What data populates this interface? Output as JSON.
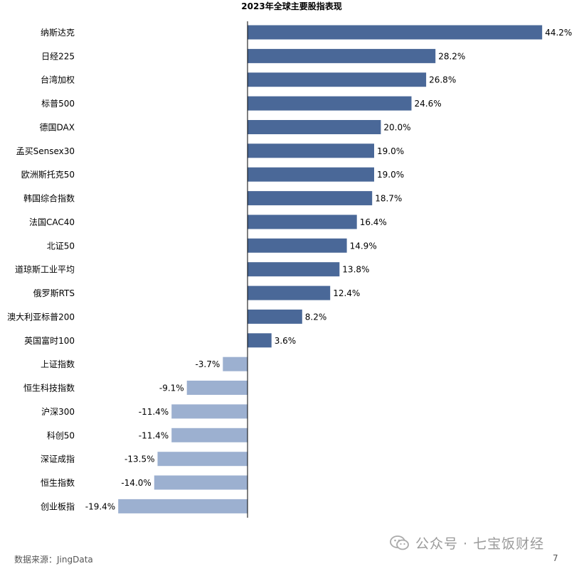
{
  "chart_data": {
    "type": "bar",
    "orientation": "horizontal",
    "title": "2023年全球主要股指表现",
    "xlabel": "",
    "ylabel": "",
    "unit": "%",
    "categories": [
      "纳斯达克",
      "日经225",
      "台湾加权",
      "标普500",
      "德国DAX",
      "孟买Sensex30",
      "欧洲斯托克50",
      "韩国综合指数",
      "法国CAC40",
      "北证50",
      "道琼斯工业平均",
      "俄罗斯RTS",
      "澳大利亚标普200",
      "英国富时100",
      "上证指数",
      "恒生科技指数",
      "沪深300",
      "科创50",
      "深证成指",
      "恒生指数",
      "创业板指"
    ],
    "values": [
      44.2,
      28.2,
      26.8,
      24.6,
      20.0,
      19.0,
      19.0,
      18.7,
      16.4,
      14.9,
      13.8,
      12.4,
      8.2,
      3.6,
      -3.7,
      -9.1,
      -11.4,
      -11.4,
      -13.5,
      -14.0,
      -19.4
    ],
    "data_labels": [
      "44.2%",
      "28.2%",
      "26.8%",
      "24.6%",
      "20.0%",
      "19.0%",
      "19.0%",
      "18.7%",
      "16.4%",
      "14.9%",
      "13.8%",
      "12.4%",
      "8.2%",
      "3.6%",
      "-3.7%",
      "-9.1%",
      "-11.4%",
      "-11.4%",
      "-13.5%",
      "-14.0%",
      "-19.4%"
    ],
    "xlim": [
      -19.4,
      44.2
    ],
    "grid": false,
    "legend": "none",
    "colors": {
      "positive": "#4a6898",
      "negative": "#9cb0d0",
      "axis": "#000000"
    }
  },
  "footer": {
    "source": "数据来源：JingData",
    "watermark": "公众号 · 七宝饭财经",
    "page_number": "7"
  }
}
